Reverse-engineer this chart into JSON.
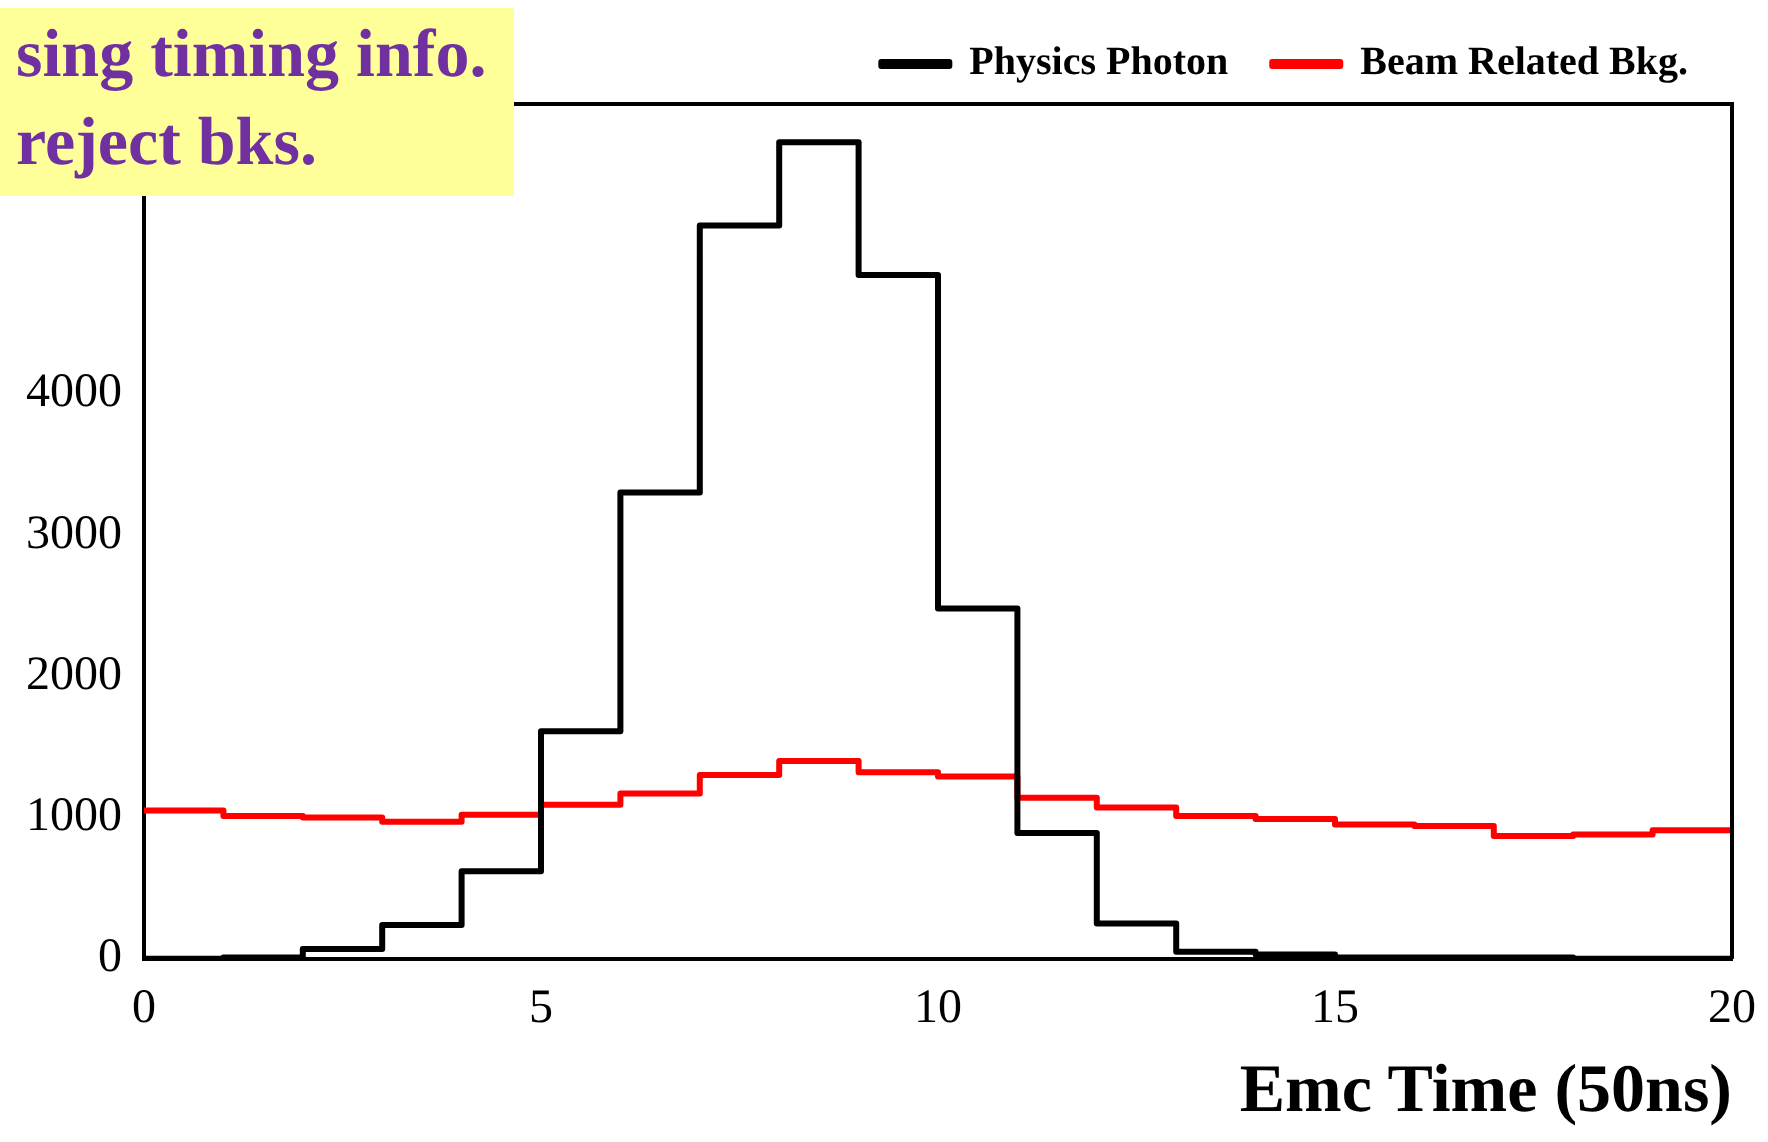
{
  "chart_data": {
    "type": "histogram",
    "xlabel": "Emc Time (50ns)",
    "annotations": [
      "sing timing info.",
      "reject bks."
    ],
    "bins": [
      0,
      1,
      2,
      3,
      4,
      5,
      6,
      7,
      8,
      9,
      10,
      11,
      12,
      13,
      14,
      15,
      16,
      17,
      18,
      19,
      20
    ],
    "series": [
      {
        "name": "Physics Photon",
        "color": "#000000",
        "values": [
          0,
          10,
          70,
          240,
          620,
          1610,
          3300,
          5190,
          5780,
          4840,
          2480,
          890,
          250,
          50,
          30,
          10,
          10,
          10,
          0,
          0
        ]
      },
      {
        "name": "Beam Related Bkg.",
        "color": "#ff0000",
        "values": [
          1050,
          1010,
          1000,
          970,
          1020,
          1090,
          1170,
          1300,
          1400,
          1320,
          1290,
          1140,
          1070,
          1010,
          990,
          950,
          940,
          870,
          880,
          910
        ]
      }
    ],
    "xlim": [
      0,
      20
    ],
    "xticks": [
      0,
      5,
      10,
      15,
      20
    ],
    "ylim": [
      0,
      6050
    ],
    "yticks": [
      0,
      1000,
      2000,
      3000,
      4000
    ],
    "grid": false,
    "legend": "top right"
  }
}
